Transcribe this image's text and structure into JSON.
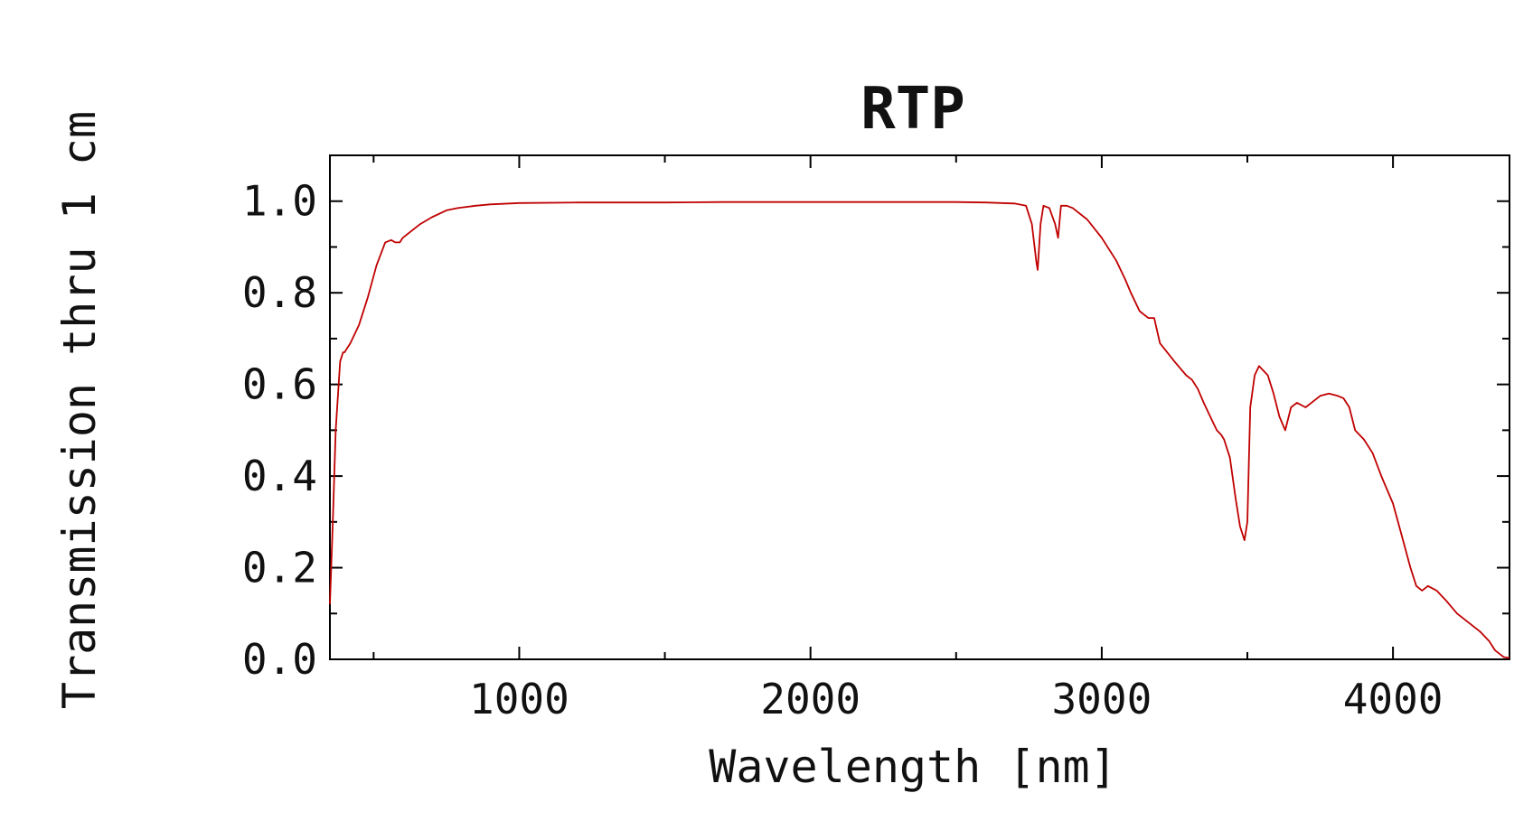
{
  "chart_data": {
    "type": "line",
    "title": "RTP",
    "xlabel": "Wavelength [nm]",
    "ylabel": "Transmission thru 1 cm",
    "xlim": [
      350,
      4400
    ],
    "ylim": [
      0,
      1.1
    ],
    "xticks": [
      1000,
      2000,
      3000,
      4000
    ],
    "xtick_labels": [
      "1000",
      "2000",
      "3000",
      "4000"
    ],
    "yticks": [
      0.0,
      0.2,
      0.4,
      0.6,
      0.8,
      1.0
    ],
    "ytick_labels": [
      "0.0",
      "0.2",
      "0.4",
      "0.6",
      "0.8",
      "1.0"
    ],
    "grid": false,
    "series": [
      {
        "color": "#c00000",
        "x": [
          350,
          360,
          370,
          385,
          395,
          400,
          420,
          450,
          480,
          510,
          540,
          560,
          575,
          590,
          600,
          630,
          660,
          700,
          750,
          790,
          850,
          900,
          1000,
          1200,
          1500,
          1700,
          2000,
          2300,
          2500,
          2600,
          2700,
          2740,
          2760,
          2775,
          2780,
          2790,
          2800,
          2820,
          2840,
          2850,
          2860,
          2880,
          2900,
          2950,
          3000,
          3050,
          3080,
          3100,
          3130,
          3160,
          3180,
          3200,
          3250,
          3290,
          3310,
          3330,
          3350,
          3380,
          3395,
          3410,
          3420,
          3440,
          3460,
          3475,
          3490,
          3500,
          3510,
          3525,
          3540,
          3570,
          3590,
          3610,
          3630,
          3650,
          3670,
          3700,
          3720,
          3750,
          3780,
          3810,
          3830,
          3850,
          3870,
          3900,
          3930,
          3960,
          4000,
          4030,
          4060,
          4080,
          4100,
          4120,
          4150,
          4180,
          4220,
          4260,
          4300,
          4330,
          4350,
          4370,
          4380,
          4400
        ],
        "y": [
          0.12,
          0.3,
          0.5,
          0.65,
          0.67,
          0.67,
          0.69,
          0.73,
          0.79,
          0.86,
          0.91,
          0.915,
          0.91,
          0.91,
          0.92,
          0.935,
          0.95,
          0.965,
          0.98,
          0.985,
          0.99,
          0.993,
          0.996,
          0.997,
          0.997,
          0.998,
          0.998,
          0.998,
          0.998,
          0.997,
          0.995,
          0.99,
          0.95,
          0.87,
          0.85,
          0.95,
          0.99,
          0.985,
          0.95,
          0.92,
          0.99,
          0.99,
          0.985,
          0.96,
          0.92,
          0.87,
          0.83,
          0.8,
          0.76,
          0.745,
          0.745,
          0.69,
          0.65,
          0.62,
          0.61,
          0.59,
          0.56,
          0.52,
          0.5,
          0.49,
          0.48,
          0.44,
          0.35,
          0.29,
          0.26,
          0.3,
          0.55,
          0.62,
          0.64,
          0.62,
          0.58,
          0.53,
          0.5,
          0.55,
          0.56,
          0.55,
          0.56,
          0.575,
          0.58,
          0.575,
          0.57,
          0.55,
          0.5,
          0.48,
          0.45,
          0.4,
          0.34,
          0.27,
          0.2,
          0.16,
          0.15,
          0.16,
          0.15,
          0.13,
          0.1,
          0.08,
          0.06,
          0.04,
          0.02,
          0.01,
          0.005,
          0.003
        ]
      }
    ]
  }
}
